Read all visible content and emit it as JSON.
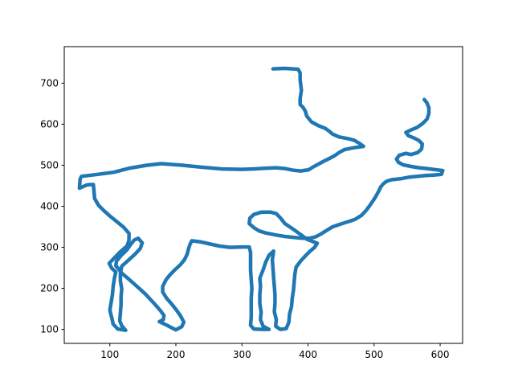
{
  "chart_data": {
    "type": "scatter",
    "title": "",
    "xlabel": "",
    "ylabel": "",
    "xlim": [
      31,
      634
    ],
    "ylim": [
      66,
      789
    ],
    "xticks": [
      100,
      200,
      300,
      400,
      500,
      600
    ],
    "yticks": [
      100,
      200,
      300,
      400,
      500,
      600,
      700
    ],
    "grid": false,
    "legend": "none",
    "series": [
      {
        "color": "#1f77b4",
        "points": [
          [
            347,
            735
          ],
          [
            365,
            736
          ],
          [
            385,
            734
          ],
          [
            388,
            725
          ],
          [
            388,
            708
          ],
          [
            390,
            683
          ],
          [
            388,
            662
          ],
          [
            388,
            648
          ],
          [
            392,
            642
          ],
          [
            396,
            632
          ],
          [
            398,
            620
          ],
          [
            405,
            606
          ],
          [
            415,
            597
          ],
          [
            426,
            590
          ],
          [
            432,
            583
          ],
          [
            437,
            576
          ],
          [
            447,
            569
          ],
          [
            460,
            565
          ],
          [
            470,
            561
          ],
          [
            478,
            553
          ],
          [
            484,
            546
          ],
          [
            470,
            543
          ],
          [
            455,
            538
          ],
          [
            447,
            531
          ],
          [
            440,
            523
          ],
          [
            433,
            517
          ],
          [
            424,
            510
          ],
          [
            416,
            503
          ],
          [
            408,
            496
          ],
          [
            401,
            489
          ],
          [
            389,
            486
          ],
          [
            377,
            488
          ],
          [
            365,
            492
          ],
          [
            352,
            494
          ],
          [
            338,
            493
          ],
          [
            316,
            491
          ],
          [
            300,
            490
          ],
          [
            270,
            491
          ],
          [
            240,
            495
          ],
          [
            210,
            500
          ],
          [
            178,
            504
          ],
          [
            156,
            500
          ],
          [
            130,
            493
          ],
          [
            106,
            483
          ],
          [
            83,
            478
          ],
          [
            57,
            473
          ],
          [
            55,
            466
          ],
          [
            54,
            444
          ],
          [
            65,
            452
          ],
          [
            70,
            453
          ],
          [
            75,
            453
          ],
          [
            76,
            438
          ],
          [
            77,
            419
          ],
          [
            83,
            402
          ],
          [
            92,
            388
          ],
          [
            101,
            375
          ],
          [
            111,
            362
          ],
          [
            121,
            349
          ],
          [
            129,
            334
          ],
          [
            129,
            317
          ],
          [
            126,
            303
          ],
          [
            115,
            288
          ],
          [
            106,
            273
          ],
          [
            99,
            261
          ],
          [
            103,
            249
          ],
          [
            109,
            240
          ],
          [
            107,
            225
          ],
          [
            105,
            205
          ],
          [
            104,
            185
          ],
          [
            102,
            166
          ],
          [
            100,
            147
          ],
          [
            103,
            128
          ],
          [
            105,
            113
          ],
          [
            112,
            101
          ],
          [
            124,
            98
          ],
          [
            118,
            109
          ],
          [
            115,
            121
          ],
          [
            116,
            140
          ],
          [
            117,
            160
          ],
          [
            117,
            180
          ],
          [
            118,
            198
          ],
          [
            116,
            218
          ],
          [
            116,
            236
          ],
          [
            118,
            254
          ],
          [
            129,
            270
          ],
          [
            138,
            283
          ],
          [
            146,
            297
          ],
          [
            149,
            311
          ],
          [
            143,
            322
          ],
          [
            137,
            318
          ],
          [
            131,
            306
          ],
          [
            126,
            294
          ],
          [
            117,
            280
          ],
          [
            110,
            266
          ],
          [
            109,
            255
          ],
          [
            113,
            248
          ],
          [
            118,
            237
          ],
          [
            127,
            225
          ],
          [
            136,
            212
          ],
          [
            145,
            199
          ],
          [
            154,
            186
          ],
          [
            162,
            172
          ],
          [
            170,
            158
          ],
          [
            177,
            145
          ],
          [
            182,
            134
          ],
          [
            181,
            124
          ],
          [
            175,
            119
          ],
          [
            184,
            112
          ],
          [
            195,
            103
          ],
          [
            200,
            99
          ],
          [
            209,
            107
          ],
          [
            212,
            118
          ],
          [
            207,
            133
          ],
          [
            201,
            147
          ],
          [
            194,
            161
          ],
          [
            186,
            176
          ],
          [
            180,
            191
          ],
          [
            180,
            205
          ],
          [
            185,
            221
          ],
          [
            191,
            233
          ],
          [
            199,
            246
          ],
          [
            207,
            258
          ],
          [
            213,
            270
          ],
          [
            217,
            283
          ],
          [
            219,
            295
          ],
          [
            221,
            306
          ],
          [
            224,
            316
          ],
          [
            238,
            313
          ],
          [
            252,
            308
          ],
          [
            266,
            303
          ],
          [
            282,
            300
          ],
          [
            300,
            301
          ],
          [
            311,
            301
          ],
          [
            313,
            288
          ],
          [
            313,
            266
          ],
          [
            313,
            244
          ],
          [
            314,
            222
          ],
          [
            315,
            199
          ],
          [
            314,
            176
          ],
          [
            314,
            152
          ],
          [
            314,
            129
          ],
          [
            313,
            110
          ],
          [
            318,
            101
          ],
          [
            331,
            100
          ],
          [
            341,
            100
          ],
          [
            332,
            108
          ],
          [
            328,
            124
          ],
          [
            329,
            142
          ],
          [
            327,
            163
          ],
          [
            327,
            184
          ],
          [
            328,
            205
          ],
          [
            327,
            225
          ],
          [
            332,
            245
          ],
          [
            336,
            264
          ],
          [
            341,
            281
          ],
          [
            348,
            291
          ],
          [
            346,
            270
          ],
          [
            347,
            248
          ],
          [
            348,
            226
          ],
          [
            349,
            205
          ],
          [
            350,
            184
          ],
          [
            350,
            164
          ],
          [
            349,
            143
          ],
          [
            352,
            124
          ],
          [
            351,
            108
          ],
          [
            358,
            100
          ],
          [
            367,
            102
          ],
          [
            371,
            118
          ],
          [
            372,
            137
          ],
          [
            375,
            156
          ],
          [
            376,
            175
          ],
          [
            378,
            195
          ],
          [
            379,
            214
          ],
          [
            380,
            234
          ],
          [
            382,
            252
          ],
          [
            389,
            267
          ],
          [
            397,
            281
          ],
          [
            402,
            289
          ],
          [
            410,
            300
          ],
          [
            414,
            310
          ],
          [
            398,
            320
          ],
          [
            388,
            332
          ],
          [
            375,
            347
          ],
          [
            365,
            358
          ],
          [
            358,
            372
          ],
          [
            352,
            382
          ],
          [
            343,
            386
          ],
          [
            330,
            386
          ],
          [
            318,
            380
          ],
          [
            312,
            371
          ],
          [
            311,
            358
          ],
          [
            318,
            348
          ],
          [
            326,
            340
          ],
          [
            336,
            335
          ],
          [
            352,
            330
          ],
          [
            367,
            326
          ],
          [
            379,
            324
          ],
          [
            391,
            322
          ],
          [
            403,
            322
          ],
          [
            412,
            326
          ],
          [
            419,
            332
          ],
          [
            427,
            340
          ],
          [
            437,
            350
          ],
          [
            448,
            356
          ],
          [
            460,
            362
          ],
          [
            471,
            368
          ],
          [
            481,
            378
          ],
          [
            488,
            390
          ],
          [
            494,
            403
          ],
          [
            499,
            415
          ],
          [
            503,
            425
          ],
          [
            507,
            437
          ],
          [
            510,
            447
          ],
          [
            514,
            455
          ],
          [
            519,
            461
          ],
          [
            527,
            465
          ],
          [
            540,
            467
          ],
          [
            553,
            471
          ],
          [
            566,
            473
          ],
          [
            578,
            475
          ],
          [
            590,
            476
          ],
          [
            602,
            478
          ],
          [
            604,
            487
          ],
          [
            594,
            489
          ],
          [
            580,
            492
          ],
          [
            568,
            494
          ],
          [
            556,
            497
          ],
          [
            544,
            501
          ],
          [
            537,
            507
          ],
          [
            534,
            515
          ],
          [
            538,
            524
          ],
          [
            548,
            529
          ],
          [
            556,
            526
          ],
          [
            566,
            531
          ],
          [
            572,
            540
          ],
          [
            573,
            552
          ],
          [
            568,
            560
          ],
          [
            561,
            566
          ],
          [
            552,
            572
          ],
          [
            548,
            580
          ],
          [
            556,
            586
          ],
          [
            565,
            592
          ],
          [
            573,
            601
          ],
          [
            580,
            612
          ],
          [
            583,
            626
          ],
          [
            583,
            640
          ],
          [
            580,
            652
          ],
          [
            576,
            660
          ]
        ]
      }
    ]
  }
}
